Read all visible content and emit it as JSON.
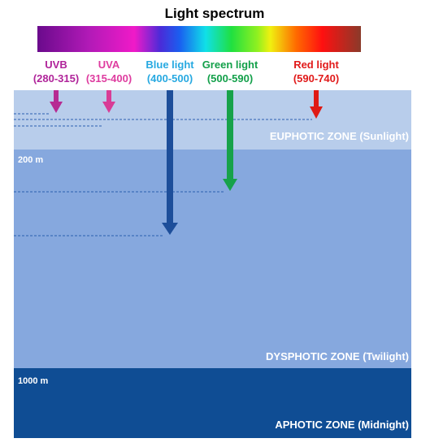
{
  "title": "Light spectrum",
  "bands": [
    {
      "name": "UVB",
      "range": "(280-315)",
      "color": "#b0249a"
    },
    {
      "name": "UVA",
      "range": "(315-400)",
      "color": "#de3c9f"
    },
    {
      "name": "Blue light",
      "range": "(400-500)",
      "color": "#27a9e1"
    },
    {
      "name": "Green light",
      "range": "(500-590)",
      "color": "#13a04a"
    },
    {
      "name": "Red light",
      "range": "(590-740)",
      "color": "#e11a1a"
    }
  ],
  "zones": [
    {
      "name": "EUPHOTIC ZONE (Sunlight)",
      "color": "#b8cdeb"
    },
    {
      "name": "DYSPHOTIC ZONE (Twilight)",
      "color": "#86a8de"
    },
    {
      "name": "APHOTIC ZONE (Midnight)",
      "color": "#0f4d94"
    }
  ],
  "depths": [
    "200 m",
    "1000 m"
  ],
  "colors": {
    "blue_arrow": "#1d4e9a",
    "green_arrow": "#17a24a",
    "red_arrow": "#df1a14",
    "uva_arrow": "#d83c96",
    "uvb_arrow": "#b62a92",
    "guide_line": "#2b5fb0"
  }
}
